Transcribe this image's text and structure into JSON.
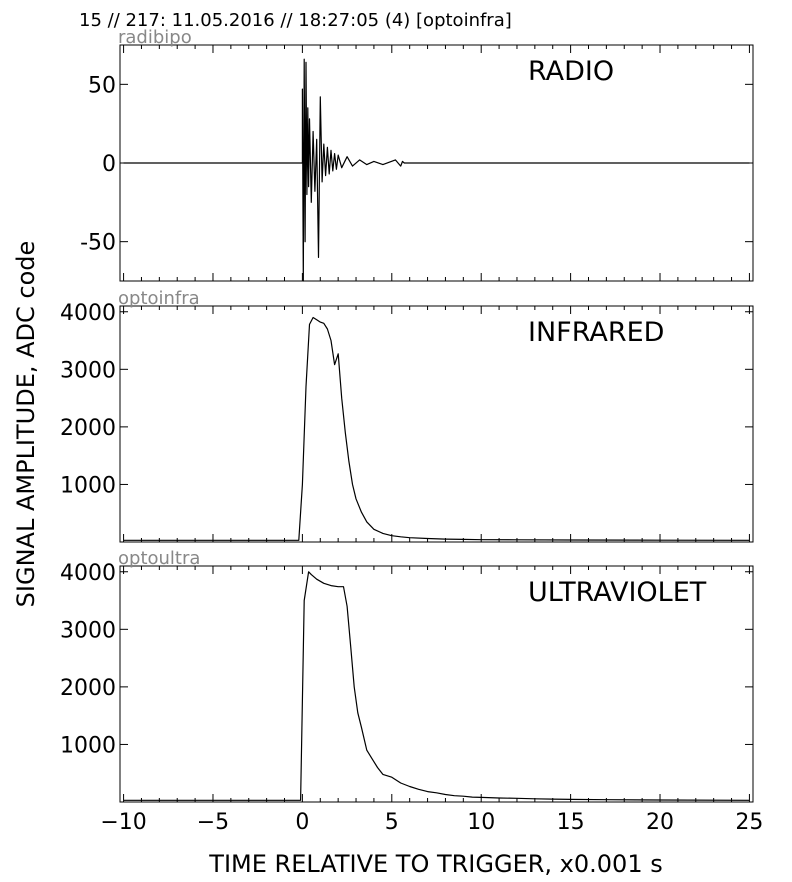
{
  "header": {
    "title": "15 // 217:   11.05.2016 // 18:27:05 (4)  [optoinfra]"
  },
  "figure": {
    "ylabel": "SIGNAL AMPLITUDE,  ADC code",
    "xlabel": "TIME RELATIVE TO TRIGGER,   x0.001 s"
  },
  "chart_data": [
    {
      "type": "line",
      "channel": "radibipo",
      "label": "RADIO",
      "xlim": [
        -10.2,
        25.2
      ],
      "ylim": [
        -75,
        75
      ],
      "yticks": [
        50,
        0,
        -50
      ],
      "ytick_labels": [
        "50",
        "0",
        "-50"
      ],
      "x": [
        -10,
        0,
        0.0,
        0.05,
        0.1,
        0.15,
        0.2,
        0.25,
        0.3,
        0.35,
        0.4,
        0.5,
        0.6,
        0.7,
        0.8,
        0.9,
        1.0,
        1.1,
        1.2,
        1.3,
        1.4,
        1.5,
        1.6,
        1.7,
        1.8,
        1.9,
        2.0,
        2.2,
        2.5,
        2.8,
        3.2,
        3.6,
        4.0,
        4.5,
        5.2,
        5.5,
        5.6,
        5.7,
        6.0,
        8,
        25
      ],
      "y": [
        0,
        0,
        47,
        -75,
        66,
        -50,
        64,
        -20,
        35,
        -15,
        28,
        -25,
        20,
        -18,
        15,
        -60,
        42,
        -12,
        12,
        -8,
        10,
        -7,
        8,
        -5,
        6,
        -4,
        5,
        -3,
        4,
        -2,
        2,
        -1,
        1,
        -1,
        2,
        -2,
        1,
        0,
        0,
        0,
        0
      ]
    },
    {
      "type": "line",
      "channel": "optoinfra",
      "label": "INFRARED",
      "xlim": [
        -10.2,
        25.2
      ],
      "ylim": [
        0,
        4100
      ],
      "yticks": [
        4000,
        3000,
        2000,
        1000
      ],
      "ytick_labels": [
        "4000",
        "3000",
        "2000",
        "1000"
      ],
      "x": [
        -10,
        -0.2,
        0,
        0.2,
        0.4,
        0.6,
        0.8,
        1.0,
        1.2,
        1.4,
        1.6,
        1.8,
        2.0,
        2.2,
        2.4,
        2.6,
        2.8,
        3.0,
        3.3,
        3.6,
        4.0,
        4.5,
        5.0,
        5.5,
        6.0,
        7.0,
        8.0,
        9.0,
        10,
        12,
        15,
        20,
        25
      ],
      "y": [
        30,
        30,
        1000,
        2700,
        3780,
        3900,
        3860,
        3820,
        3800,
        3700,
        3500,
        3080,
        3270,
        2500,
        1900,
        1400,
        1000,
        750,
        520,
        350,
        220,
        150,
        110,
        90,
        75,
        60,
        50,
        45,
        40,
        38,
        35,
        32,
        30
      ]
    },
    {
      "type": "line",
      "channel": "optoultra",
      "label": "ULTRAVIOLET",
      "xlim": [
        -10.2,
        25.2
      ],
      "ylim": [
        0,
        4100
      ],
      "yticks": [
        4000,
        3000,
        2000,
        1000
      ],
      "ytick_labels": [
        "4000",
        "3000",
        "2000",
        "1000"
      ],
      "x": [
        -10,
        -0.1,
        0.1,
        0.35,
        0.5,
        0.8,
        1.2,
        1.6,
        2.0,
        2.3,
        2.5,
        2.7,
        2.9,
        3.1,
        3.3,
        3.6,
        3.9,
        4.2,
        4.5,
        5.0,
        5.5,
        6.0,
        6.5,
        7.0,
        7.5,
        8.0,
        8.5,
        9.0,
        9.5,
        10,
        11,
        12,
        13,
        14,
        15,
        17,
        20,
        25
      ],
      "y": [
        30,
        30,
        3500,
        4000,
        3950,
        3870,
        3800,
        3760,
        3740,
        3740,
        3400,
        2700,
        2000,
        1550,
        1300,
        900,
        750,
        600,
        480,
        430,
        330,
        270,
        220,
        180,
        160,
        130,
        110,
        100,
        85,
        80,
        70,
        65,
        55,
        50,
        45,
        40,
        35,
        30
      ]
    }
  ],
  "xaxis": {
    "ticks": [
      -10,
      -5,
      0,
      5,
      10,
      15,
      20,
      25
    ],
    "tick_labels": [
      "−10",
      "−5",
      "0",
      "5",
      "10",
      "15",
      "20",
      "25"
    ]
  }
}
